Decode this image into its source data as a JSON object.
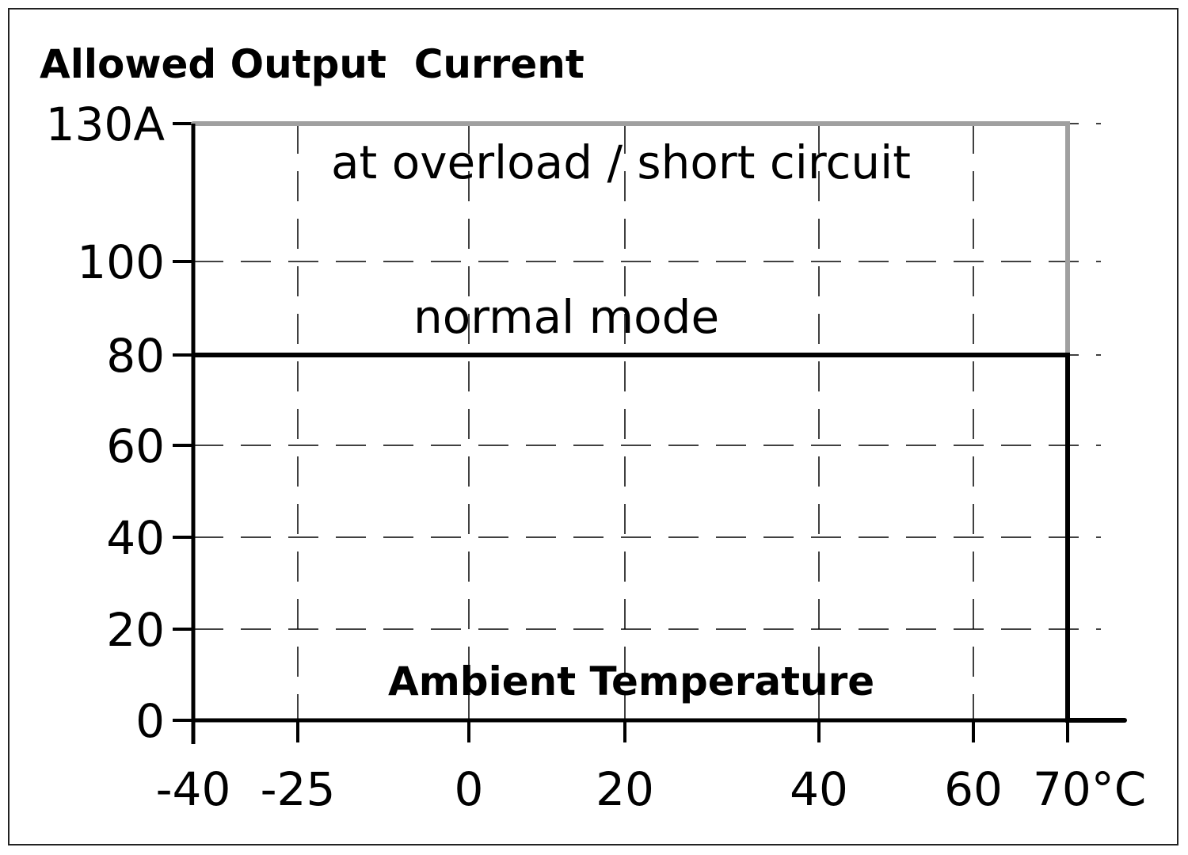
{
  "chart_data": {
    "type": "line",
    "title": "Allowed Output  Current",
    "xlabel": "Ambient Temperature",
    "ylabel": "",
    "xlim": [
      -40,
      76
    ],
    "ylim": [
      0,
      130
    ],
    "x_ticks": [
      {
        "value": -40,
        "label": "-40"
      },
      {
        "value": -25,
        "label": "-25"
      },
      {
        "value": 0,
        "label": "0"
      },
      {
        "value": 20,
        "label": "20"
      },
      {
        "value": 40,
        "label": "40"
      },
      {
        "value": 60,
        "label": "60"
      },
      {
        "value": 70,
        "label": "70°C"
      }
    ],
    "y_ticks": [
      {
        "value": 0,
        "label": "0"
      },
      {
        "value": 20,
        "label": "20"
      },
      {
        "value": 40,
        "label": "40"
      },
      {
        "value": 60,
        "label": "60"
      },
      {
        "value": 80,
        "label": "80"
      },
      {
        "value": 100,
        "label": "100"
      },
      {
        "value": 130,
        "label": "130A"
      }
    ],
    "grid": true,
    "series": [
      {
        "name": "at overload / short circuit",
        "color": "#a0a0a0",
        "x": [
          -40,
          70,
          70
        ],
        "y": [
          130,
          130,
          80
        ]
      },
      {
        "name": "normal mode",
        "color": "#000000",
        "x": [
          -40,
          70,
          70,
          76
        ],
        "y": [
          80,
          80,
          0,
          0
        ]
      }
    ]
  }
}
